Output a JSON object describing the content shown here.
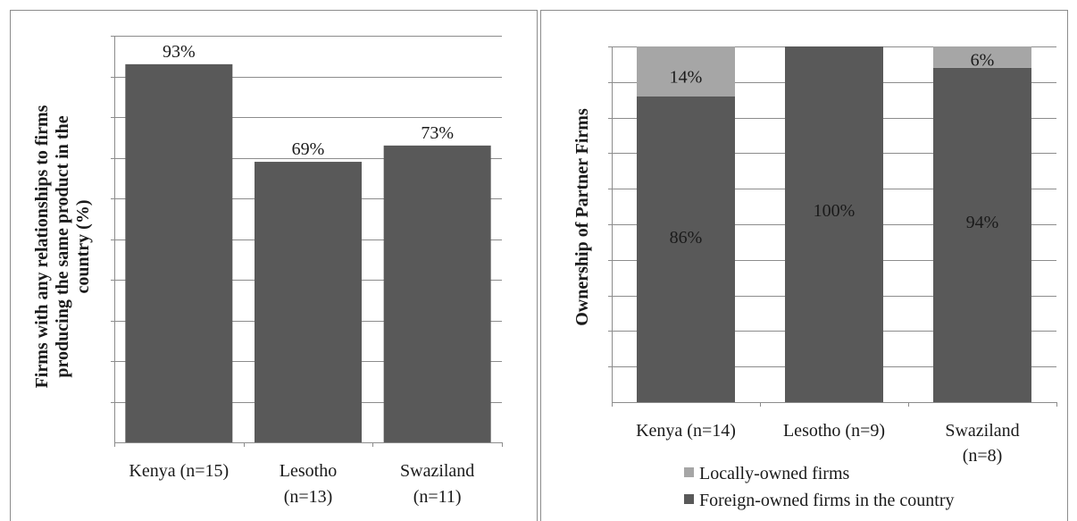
{
  "chart_data": [
    {
      "type": "bar",
      "ylabel": "Firms with any relationships to firms producing the same product in the country (%)",
      "ylabel_lines": [
        "Firms with any relationships to firms",
        "producing the same product in the",
        "country (%)"
      ],
      "categories": [
        "Kenya (n=15)",
        "Lesotho (n=13)",
        "Swaziland (n=11)"
      ],
      "category_lines": [
        [
          "Kenya (n=15)"
        ],
        [
          "Lesotho",
          "(n=13)"
        ],
        [
          "Swaziland",
          "(n=11)"
        ]
      ],
      "values": [
        93,
        69,
        73
      ],
      "value_labels": [
        "93%",
        "69%",
        "73%"
      ],
      "ylim": [
        0,
        100
      ],
      "grid": true,
      "bar_color": "#595959"
    },
    {
      "type": "bar",
      "stacked": true,
      "ylabel": "Ownership of Partner Firms",
      "categories": [
        "Kenya (n=14)",
        "Lesotho (n=9)",
        "Swaziland (n=8)"
      ],
      "category_lines": [
        [
          "Kenya (n=14)"
        ],
        [
          "Lesotho (n=9)"
        ],
        [
          "Swaziland",
          "(n=8)"
        ]
      ],
      "series": [
        {
          "name": "Foreign-owned firms in the country",
          "values": [
            86,
            100,
            94
          ],
          "labels": [
            "86%",
            "100%",
            "94%"
          ],
          "color": "#595959"
        },
        {
          "name": "Locally-owned firms",
          "values": [
            14,
            0,
            6
          ],
          "labels": [
            "14%",
            "",
            "6%"
          ],
          "color": "#a6a6a6"
        }
      ],
      "ylim": [
        0,
        100
      ],
      "grid": true,
      "legend": "bottom",
      "legend_order": [
        1,
        0
      ]
    }
  ]
}
